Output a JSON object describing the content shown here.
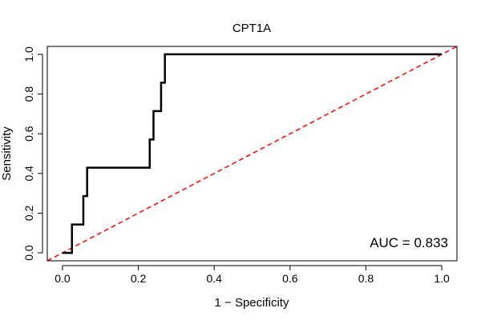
{
  "chart_data": {
    "type": "line",
    "title": "CPT1A",
    "xlabel": "1 − Specificity",
    "ylabel": "Sensitivity",
    "xlim": [
      -0.04,
      1.04
    ],
    "ylim": [
      -0.04,
      1.04
    ],
    "x_ticks": [
      0.0,
      0.2,
      0.4,
      0.6,
      0.8,
      1.0
    ],
    "x_tick_labels": [
      "0.0",
      "0.2",
      "0.4",
      "0.6",
      "0.8",
      "1.0"
    ],
    "y_ticks": [
      0.0,
      0.2,
      0.4,
      0.6,
      0.8,
      1.0
    ],
    "y_tick_labels": [
      "0.0",
      "0.2",
      "0.4",
      "0.6",
      "0.8",
      "1.0"
    ],
    "grid": false,
    "annotation": "AUC = 0.833",
    "series": [
      {
        "name": "ROC curve",
        "color": "#000000",
        "style": "solid",
        "x": [
          0.0,
          0.025,
          0.025,
          0.055,
          0.055,
          0.065,
          0.065,
          0.23,
          0.23,
          0.24,
          0.24,
          0.26,
          0.26,
          0.27,
          0.27,
          1.0
        ],
        "y": [
          0.0,
          0.0,
          0.143,
          0.143,
          0.286,
          0.286,
          0.429,
          0.429,
          0.571,
          0.571,
          0.714,
          0.714,
          0.857,
          0.857,
          1.0,
          1.0
        ]
      },
      {
        "name": "Reference diagonal",
        "color": "#ff0000",
        "style": "dashed",
        "x": [
          -0.04,
          1.04
        ],
        "y": [
          -0.04,
          1.04
        ]
      }
    ]
  }
}
